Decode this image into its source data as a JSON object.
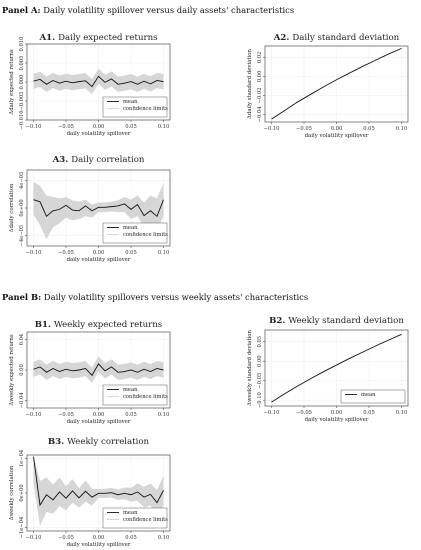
{
  "panels": [
    {
      "prefix": "Panel A:",
      "text": "Daily volatility spillover versus daily assets' characteristics"
    },
    {
      "prefix": "Panel B:",
      "text": "Daily volatility spillovers versus weekly assets' characteristics"
    }
  ],
  "chart_data": [
    {
      "id": "A1",
      "type": "line",
      "title_prefix": "A1.",
      "title": "Daily expected returns",
      "xlabel": "daily volatility spillover",
      "ylabel": "Δdaily expected returns",
      "xlim": [
        -0.11,
        0.11
      ],
      "ylim": [
        -0.01,
        0.01
      ],
      "xticks": [
        -0.1,
        -0.05,
        0.0,
        0.05,
        0.1
      ],
      "xtick_labels": [
        "−0.10",
        "−0.05",
        "0.00",
        "0.05",
        "0.10"
      ],
      "yticks": [
        -0.01,
        -0.005,
        0.0,
        0.005,
        0.01
      ],
      "ytick_labels": [
        "−0.010",
        "−0.005",
        "0.000",
        "0.005",
        "0.010"
      ],
      "legend": {
        "position": "lower-right",
        "entries": [
          "mean",
          "confidence limits"
        ]
      },
      "x": [
        -0.1,
        -0.09,
        -0.08,
        -0.07,
        -0.06,
        -0.05,
        -0.04,
        -0.03,
        -0.02,
        -0.01,
        0.0,
        0.01,
        0.02,
        0.03,
        0.04,
        0.05,
        0.06,
        0.07,
        0.08,
        0.09,
        0.1
      ],
      "series": [
        {
          "name": "mean",
          "values": [
            0.0002,
            0.0007,
            -0.0006,
            0.0004,
            -0.0003,
            0.0002,
            -0.0002,
            0.0001,
            0.0003,
            -0.0012,
            0.0015,
            -0.0001,
            0.0008,
            -0.0006,
            -0.0003,
            0.0001,
            -0.0006,
            0.0002,
            -0.0005,
            0.0004,
            0.0001
          ]
        },
        {
          "name": "lower",
          "values": [
            -0.0018,
            -0.0013,
            -0.0026,
            -0.0016,
            -0.0023,
            -0.0018,
            -0.0022,
            -0.0019,
            -0.0017,
            -0.0032,
            -0.0005,
            -0.0021,
            -0.0012,
            -0.0026,
            -0.0023,
            -0.0019,
            -0.0026,
            -0.0018,
            -0.0025,
            -0.0016,
            -0.0019
          ]
        },
        {
          "name": "upper",
          "values": [
            0.0022,
            0.0027,
            0.0014,
            0.0024,
            0.0017,
            0.0022,
            0.0018,
            0.0021,
            0.0023,
            0.0008,
            0.0035,
            0.0019,
            0.0028,
            0.0014,
            0.0017,
            0.0021,
            0.0014,
            0.0022,
            0.0015,
            0.0024,
            0.0021
          ]
        }
      ]
    },
    {
      "id": "A2",
      "type": "line",
      "title_prefix": "A2.",
      "title": "Daily standard deviation",
      "xlabel": "daily volatility spillover",
      "ylabel": "Δdaily standard deviation",
      "xlim": [
        -0.11,
        0.11
      ],
      "ylim": [
        -0.048,
        0.032
      ],
      "xticks": [
        -0.1,
        -0.05,
        0.0,
        0.05,
        0.1
      ],
      "xtick_labels": [
        "−0.10",
        "−0.05",
        "0.00",
        "0.05",
        "0.10"
      ],
      "yticks": [
        -0.04,
        -0.02,
        0.0,
        0.02
      ],
      "ytick_labels": [
        "−0.04",
        "−0.02",
        "0.00",
        "0.02"
      ],
      "legend": null,
      "x": [
        -0.1,
        -0.08,
        -0.06,
        -0.04,
        -0.02,
        0.0,
        0.02,
        0.04,
        0.06,
        0.08,
        0.1
      ],
      "series": [
        {
          "name": "mean",
          "values": [
            -0.045,
            -0.036,
            -0.027,
            -0.019,
            -0.011,
            -0.0035,
            0.0035,
            0.0105,
            0.017,
            0.0235,
            0.0295
          ]
        }
      ]
    },
    {
      "id": "A3",
      "type": "line",
      "title_prefix": "A3.",
      "title": "Daily correlation",
      "xlabel": "daily volatility spillover",
      "ylabel": "Δdaily correlation",
      "xlim": [
        -0.11,
        0.11
      ],
      "ylim": [
        -5.5e-05,
        5.5e-05
      ],
      "xticks": [
        -0.1,
        -0.05,
        0.0,
        0.05,
        0.1
      ],
      "xtick_labels": [
        "−0.10",
        "−0.05",
        "0.00",
        "0.05",
        "0.10"
      ],
      "yticks": [
        -4e-05,
        0.0,
        4e-05
      ],
      "ytick_labels": [
        "−4e−05",
        "0e+00",
        "4e−05"
      ],
      "legend": {
        "position": "lower-right",
        "entries": [
          "mean",
          "confidence limits"
        ]
      },
      "x": [
        -0.1,
        -0.09,
        -0.08,
        -0.07,
        -0.06,
        -0.05,
        -0.04,
        -0.03,
        -0.02,
        -0.01,
        0.0,
        0.01,
        0.02,
        0.03,
        0.04,
        0.05,
        0.06,
        0.07,
        0.08,
        0.09,
        0.1
      ],
      "series": [
        {
          "name": "mean",
          "values": [
            1.2e-05,
            9e-06,
            -1.2e-05,
            -4e-06,
            -2e-06,
            4e-06,
            -3e-06,
            -4e-06,
            3e-06,
            -4e-06,
            1e-06,
            1e-06,
            2e-06,
            3e-06,
            6e-06,
            -2e-06,
            5e-06,
            -1.1e-05,
            -4e-06,
            -1.2e-05,
            1.2e-05
          ]
        },
        {
          "name": "lower",
          "values": [
            -1e-05,
            -2.5e-05,
            -4.5e-05,
            -2.8e-05,
            -2.2e-05,
            -1.4e-05,
            -1.8e-05,
            -1.6e-05,
            -1.2e-05,
            -1.4e-05,
            -6e-06,
            -6e-06,
            -5e-06,
            -6e-06,
            -6e-06,
            -1.6e-05,
            -1.2e-05,
            -2.8e-05,
            -2.4e-05,
            -3.4e-05,
            -1.2e-05
          ]
        },
        {
          "name": "upper",
          "values": [
            3.8e-05,
            3.2e-05,
            1.8e-05,
            1.6e-05,
            1.4e-05,
            1.6e-05,
            1.1e-05,
            9e-06,
            1.2e-05,
            5e-06,
            8e-06,
            8e-06,
            9e-06,
            1.1e-05,
            1.6e-05,
            1.2e-05,
            1.8e-05,
            8e-06,
            1.8e-05,
            1.4e-05,
            3.6e-05
          ]
        }
      ]
    },
    {
      "id": "B1",
      "type": "line",
      "title_prefix": "B1.",
      "title": "Weekly expected returns",
      "xlabel": "daily volatility spillover",
      "ylabel": "Δweekly expected returns",
      "xlim": [
        -0.11,
        0.11
      ],
      "ylim": [
        -0.05,
        0.05
      ],
      "xticks": [
        -0.1,
        -0.05,
        0.0,
        0.05,
        0.1
      ],
      "xtick_labels": [
        "−0.10",
        "−0.05",
        "0.00",
        "0.05",
        "0.10"
      ],
      "yticks": [
        -0.04,
        0.0,
        0.04
      ],
      "ytick_labels": [
        "−0.04",
        "0.00",
        "0.04"
      ],
      "legend": {
        "position": "lower-right",
        "entries": [
          "mean",
          "confidence limits"
        ]
      },
      "x": [
        -0.1,
        -0.09,
        -0.08,
        -0.07,
        -0.06,
        -0.05,
        -0.04,
        -0.03,
        -0.02,
        -0.01,
        0.0,
        0.01,
        0.02,
        0.03,
        0.04,
        0.05,
        0.06,
        0.07,
        0.08,
        0.09,
        0.1
      ],
      "series": [
        {
          "name": "mean",
          "values": [
            0.001,
            0.004,
            -0.003,
            0.002,
            -0.002,
            0.001,
            -0.001,
            0.0,
            0.002,
            -0.007,
            0.008,
            -0.001,
            0.004,
            -0.003,
            -0.002,
            0.0,
            -0.003,
            0.001,
            -0.002,
            0.002,
            0.0
          ]
        },
        {
          "name": "lower",
          "values": [
            -0.009,
            -0.006,
            -0.013,
            -0.008,
            -0.012,
            -0.009,
            -0.011,
            -0.01,
            -0.008,
            -0.017,
            -0.002,
            -0.011,
            -0.006,
            -0.013,
            -0.012,
            -0.01,
            -0.013,
            -0.009,
            -0.012,
            -0.008,
            -0.01
          ]
        },
        {
          "name": "upper",
          "values": [
            0.011,
            0.014,
            0.007,
            0.012,
            0.008,
            0.011,
            0.009,
            0.01,
            0.012,
            0.003,
            0.018,
            0.009,
            0.014,
            0.007,
            0.008,
            0.01,
            0.007,
            0.011,
            0.008,
            0.012,
            0.01
          ]
        }
      ]
    },
    {
      "id": "B2",
      "type": "line",
      "title_prefix": "B2.",
      "title": "Weekly standard deviation",
      "xlabel": "daily volatility spillover",
      "ylabel": "Δweekly standard deviation",
      "xlim": [
        -0.11,
        0.11
      ],
      "ylim": [
        -0.115,
        0.08
      ],
      "xticks": [
        -0.1,
        -0.05,
        0.0,
        0.05,
        0.1
      ],
      "xtick_labels": [
        "−0.10",
        "−0.05",
        "0.00",
        "0.05",
        "0.10"
      ],
      "yticks": [
        -0.1,
        -0.05,
        0.0,
        0.05
      ],
      "ytick_labels": [
        "−0.10",
        "−0.05",
        "0.00",
        "0.05"
      ],
      "legend": {
        "position": "lower-right",
        "entries": [
          "mean"
        ]
      },
      "x": [
        -0.1,
        -0.08,
        -0.06,
        -0.04,
        -0.02,
        0.0,
        0.02,
        0.04,
        0.06,
        0.08,
        0.1
      ],
      "series": [
        {
          "name": "mean",
          "values": [
            -0.105,
            -0.084,
            -0.064,
            -0.045,
            -0.027,
            -0.01,
            0.007,
            0.023,
            0.039,
            0.054,
            0.069
          ]
        }
      ]
    },
    {
      "id": "B3",
      "type": "line",
      "title_prefix": "B3.",
      "title": "Weekly correlation",
      "xlabel": "daily volatility spillover",
      "ylabel": "Δweekly correlation",
      "xlim": [
        -0.11,
        0.11
      ],
      "ylim": [
        -0.00011,
        0.00011
      ],
      "xticks": [
        -0.1,
        -0.05,
        0.0,
        0.05,
        0.1
      ],
      "xtick_labels": [
        "−0.10",
        "−0.05",
        "0.00",
        "0.05",
        "0.10"
      ],
      "yticks": [
        -0.0001,
        0.0,
        0.0001
      ],
      "ytick_labels": [
        "−1e−04",
        "0e+00",
        "1e−04"
      ],
      "legend": {
        "position": "lower-right",
        "entries": [
          "mean",
          "confidence limits"
        ]
      },
      "x": [
        -0.1,
        -0.09,
        -0.08,
        -0.07,
        -0.06,
        -0.05,
        -0.04,
        -0.03,
        -0.02,
        -0.01,
        0.0,
        0.01,
        0.02,
        0.03,
        0.04,
        0.05,
        0.06,
        0.07,
        0.08,
        0.09,
        0.1
      ],
      "series": [
        {
          "name": "mean",
          "values": [
            0.000105,
            -3.5e-05,
            -5e-06,
            -2e-05,
            3e-06,
            -1.5e-05,
            6e-06,
            -1.4e-05,
            5e-06,
            -1.2e-05,
            -1e-06,
            -1e-06,
            1e-06,
            -5e-06,
            -1e-06,
            -5e-06,
            3e-06,
            -1.2e-05,
            -4e-06,
            -2.8e-05,
            8e-06
          ]
        },
        {
          "name": "lower",
          "values": [
            3e-05,
            -9.5e-05,
            -5.5e-05,
            -6e-05,
            -3.8e-05,
            -5e-05,
            -2.8e-05,
            -4.2e-05,
            -2.6e-05,
            -3.6e-05,
            -1.4e-05,
            -1.4e-05,
            -1.3e-05,
            -2e-05,
            -1.8e-05,
            -2.5e-05,
            -2.2e-05,
            -4.2e-05,
            -3.6e-05,
            -6.5e-05,
            -3.5e-05
          ]
        },
        {
          "name": "upper",
          "values": [
            0.000108,
            3.5e-05,
            4.5e-05,
            2.5e-05,
            4.5e-05,
            2e-05,
            4e-05,
            1.4e-05,
            3.6e-05,
            1.2e-05,
            1.2e-05,
            1.2e-05,
            1.5e-05,
            1e-05,
            1.6e-05,
            1.5e-05,
            2.8e-05,
            1.8e-05,
            2.8e-05,
            9e-06,
            5e-05
          ]
        }
      ]
    }
  ],
  "colors": {
    "mean": "#111111",
    "band": "#d6d6d6",
    "frame": "#333333",
    "grid": "#e6e6e6"
  }
}
